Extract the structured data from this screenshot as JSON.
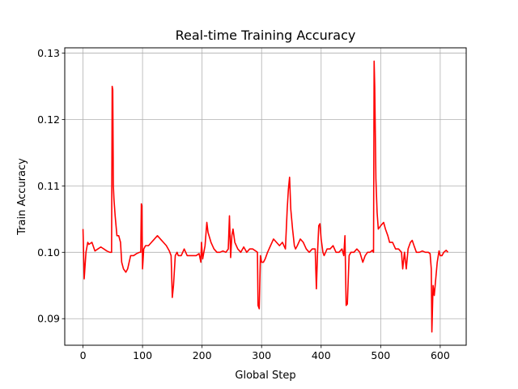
{
  "chart_data": {
    "type": "line",
    "title": "Real-time Training Accuracy",
    "x_label": "Global Step",
    "y_label": "Train Accuracy",
    "color": "#ff0000",
    "grid": true,
    "xlim": [
      -30.65,
      643.65
    ],
    "ylim": [
      0.086,
      0.1308
    ],
    "xticks": [
      0,
      100,
      200,
      300,
      400,
      500,
      600
    ],
    "yticks": [
      0.09,
      {
        "value": 0.1,
        "label": "0.10"
      },
      0.11,
      0.12,
      0.13
    ],
    "x": [
      0,
      2,
      5,
      8,
      10,
      15,
      20,
      25,
      30,
      35,
      40,
      45,
      48,
      49,
      50,
      51,
      52,
      54,
      57,
      60,
      63,
      65,
      68,
      72,
      75,
      80,
      85,
      90,
      95,
      97,
      98,
      99,
      100,
      102,
      105,
      110,
      115,
      120,
      125,
      130,
      135,
      140,
      145,
      148,
      150,
      152,
      155,
      158,
      160,
      165,
      170,
      175,
      180,
      185,
      190,
      195,
      198,
      199,
      201,
      205,
      208,
      210,
      215,
      220,
      225,
      230,
      235,
      240,
      244,
      246,
      248,
      250,
      252,
      255,
      260,
      265,
      270,
      275,
      280,
      285,
      290,
      293,
      294,
      296,
      298,
      300,
      303,
      306,
      310,
      315,
      320,
      325,
      330,
      335,
      340,
      343,
      345,
      347,
      349,
      352,
      355,
      357,
      360,
      365,
      370,
      375,
      380,
      385,
      390,
      392,
      394,
      396,
      398,
      400,
      403,
      405,
      410,
      415,
      420,
      425,
      430,
      435,
      438,
      440,
      442,
      444,
      447,
      450,
      455,
      460,
      465,
      470,
      474,
      478,
      482,
      486,
      488,
      489,
      490,
      492,
      494,
      496,
      500,
      505,
      508,
      512,
      515,
      520,
      525,
      530,
      535,
      537,
      540,
      543,
      546,
      550,
      553,
      556,
      560,
      565,
      570,
      575,
      580,
      583,
      585,
      586,
      588,
      590,
      592,
      595,
      598,
      600,
      603,
      606,
      610,
      613
    ],
    "values": [
      0.1035,
      0.096,
      0.1,
      0.1015,
      0.1012,
      0.1015,
      0.1002,
      0.1005,
      0.1008,
      0.1005,
      0.1002,
      0.1,
      0.1,
      0.125,
      0.1245,
      0.11,
      0.108,
      0.1055,
      0.1025,
      0.1025,
      0.1015,
      0.0985,
      0.0975,
      0.097,
      0.0975,
      0.0995,
      0.0995,
      0.0998,
      0.1,
      0.1,
      0.1073,
      0.107,
      0.0975,
      0.1005,
      0.101,
      0.101,
      0.1015,
      0.102,
      0.1025,
      0.102,
      0.1015,
      0.101,
      0.1002,
      0.0995,
      0.0932,
      0.095,
      0.0995,
      0.1,
      0.0995,
      0.0995,
      0.1005,
      0.0995,
      0.0995,
      0.0995,
      0.0995,
      0.0998,
      0.0985,
      0.1015,
      0.099,
      0.101,
      0.1045,
      0.103,
      0.1015,
      0.1005,
      0.1,
      0.1,
      0.1002,
      0.1,
      0.1005,
      0.1055,
      0.0992,
      0.1025,
      0.1035,
      0.1015,
      0.1005,
      0.1,
      0.1008,
      0.1,
      0.1005,
      0.1005,
      0.1002,
      0.1,
      0.092,
      0.0915,
      0.0995,
      0.0985,
      0.0985,
      0.099,
      0.1,
      0.101,
      0.102,
      0.1015,
      0.101,
      0.1015,
      0.1005,
      0.1065,
      0.1095,
      0.1113,
      0.1065,
      0.1035,
      0.101,
      0.1005,
      0.101,
      0.102,
      0.1015,
      0.1005,
      0.1,
      0.1005,
      0.1005,
      0.0945,
      0.1,
      0.104,
      0.1043,
      0.102,
      0.1,
      0.0995,
      0.1005,
      0.1005,
      0.101,
      0.1,
      0.1,
      0.1005,
      0.0995,
      0.1025,
      0.092,
      0.0922,
      0.0995,
      0.1,
      0.1,
      0.1005,
      0.1,
      0.0985,
      0.0995,
      0.1,
      0.1,
      0.1003,
      0.1,
      0.1288,
      0.125,
      0.111,
      0.106,
      0.1035,
      0.104,
      0.1045,
      0.1035,
      0.1025,
      0.1015,
      0.1015,
      0.1005,
      0.1005,
      0.1,
      0.0975,
      0.1,
      0.0975,
      0.1005,
      0.1015,
      0.1018,
      0.101,
      0.1,
      0.1,
      0.1002,
      0.1,
      0.1,
      0.0998,
      0.0975,
      0.088,
      0.095,
      0.0935,
      0.0955,
      0.0985,
      0.1002,
      0.0995,
      0.0995,
      0.1,
      0.1003,
      0.1
    ]
  }
}
